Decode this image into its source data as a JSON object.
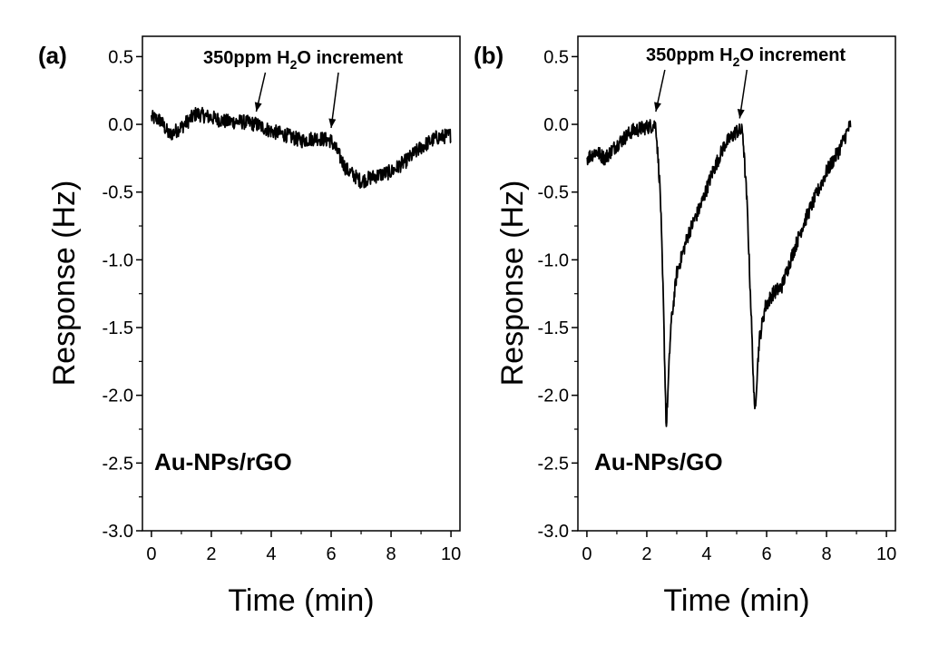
{
  "chart_data": [
    {
      "type": "line",
      "panel_label": "(a)",
      "sample_label": "Au-NPs/rGO",
      "xlabel": "Time (min)",
      "ylabel": "Response (Hz)",
      "xlim": [
        -0.3,
        10.3
      ],
      "ylim": [
        -3.0,
        0.65
      ],
      "xticks": [
        0,
        2,
        4,
        6,
        8,
        10
      ],
      "xtick_labels": [
        "0",
        "2",
        "4",
        "6",
        "8",
        "10"
      ],
      "yticks": [
        0.5,
        0.0,
        -0.5,
        -1.0,
        -1.5,
        -2.0,
        -2.5,
        -3.0
      ],
      "ytick_labels": [
        "0.5",
        "0.0",
        "-0.5",
        "-1.0",
        "-1.5",
        "-2.0",
        "-2.5",
        "-3.0"
      ],
      "annotation": {
        "prefix": "350ppm H",
        "subscript": "2",
        "suffix": "O increment",
        "arrow_x": [
          3.5,
          6.0
        ]
      },
      "series": [
        {
          "name": "Au-NPs/rGO",
          "color": "#000000",
          "points": [
            [
              0,
              0.05
            ],
            [
              0.3,
              0.03
            ],
            [
              0.6,
              -0.08
            ],
            [
              1.0,
              -0.02
            ],
            [
              1.5,
              0.08
            ],
            [
              2.0,
              0.05
            ],
            [
              2.5,
              0.02
            ],
            [
              3.0,
              0.02
            ],
            [
              3.5,
              0.0
            ],
            [
              4.0,
              -0.05
            ],
            [
              4.5,
              -0.08
            ],
            [
              5.0,
              -0.12
            ],
            [
              5.5,
              -0.1
            ],
            [
              6.0,
              -0.12
            ],
            [
              6.2,
              -0.2
            ],
            [
              6.5,
              -0.33
            ],
            [
              7.0,
              -0.42
            ],
            [
              7.5,
              -0.38
            ],
            [
              8.0,
              -0.35
            ],
            [
              8.5,
              -0.27
            ],
            [
              9.0,
              -0.17
            ],
            [
              9.5,
              -0.1
            ],
            [
              10.0,
              -0.08
            ]
          ]
        }
      ]
    },
    {
      "type": "line",
      "panel_label": "(b)",
      "sample_label": "Au-NPs/GO",
      "xlabel": "Time (min)",
      "ylabel": "Response (Hz)",
      "xlim": [
        -0.3,
        10.3
      ],
      "ylim": [
        -3.0,
        0.65
      ],
      "xticks": [
        0,
        2,
        4,
        6,
        8,
        10
      ],
      "xtick_labels": [
        "0",
        "2",
        "4",
        "6",
        "8",
        "10"
      ],
      "yticks": [
        0.5,
        0.0,
        -0.5,
        -1.0,
        -1.5,
        -2.0,
        -2.5,
        -3.0
      ],
      "ytick_labels": [
        "0.5",
        "0.0",
        "-0.5",
        "-1.0",
        "-1.5",
        "-2.0",
        "-2.5",
        "-3.0"
      ],
      "annotation": {
        "prefix": "350ppm H",
        "subscript": "2",
        "suffix": "O increment",
        "arrow_x": [
          2.3,
          5.1
        ]
      },
      "series": [
        {
          "name": "Au-NPs/GO",
          "color": "#000000",
          "points": [
            [
              0,
              -0.25
            ],
            [
              0.3,
              -0.2
            ],
            [
              0.6,
              -0.25
            ],
            [
              1.0,
              -0.15
            ],
            [
              1.5,
              -0.05
            ],
            [
              2.0,
              -0.02
            ],
            [
              2.3,
              0.0
            ],
            [
              2.45,
              -0.5
            ],
            [
              2.55,
              -1.3
            ],
            [
              2.65,
              -2.25
            ],
            [
              2.8,
              -1.5
            ],
            [
              3.0,
              -1.1
            ],
            [
              3.4,
              -0.8
            ],
            [
              3.8,
              -0.6
            ],
            [
              4.2,
              -0.35
            ],
            [
              4.6,
              -0.15
            ],
            [
              5.0,
              -0.05
            ],
            [
              5.2,
              -0.05
            ],
            [
              5.35,
              -0.6
            ],
            [
              5.5,
              -1.5
            ],
            [
              5.6,
              -2.15
            ],
            [
              5.75,
              -1.6
            ],
            [
              5.95,
              -1.35
            ],
            [
              6.2,
              -1.25
            ],
            [
              6.5,
              -1.2
            ],
            [
              6.8,
              -1.0
            ],
            [
              7.2,
              -0.75
            ],
            [
              7.6,
              -0.55
            ],
            [
              8.0,
              -0.35
            ],
            [
              8.4,
              -0.2
            ],
            [
              8.8,
              0.0
            ]
          ]
        }
      ]
    }
  ]
}
